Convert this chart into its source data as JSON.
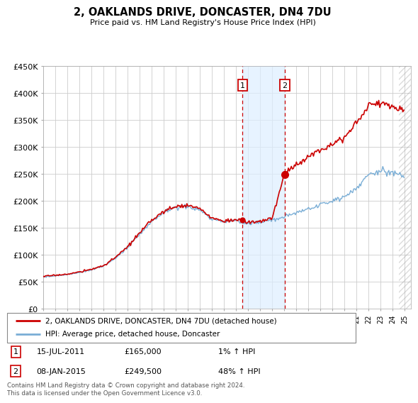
{
  "title": "2, OAKLANDS DRIVE, DONCASTER, DN4 7DU",
  "subtitle": "Price paid vs. HM Land Registry's House Price Index (HPI)",
  "ylabel_ticks": [
    "£0",
    "£50K",
    "£100K",
    "£150K",
    "£200K",
    "£250K",
    "£300K",
    "£350K",
    "£400K",
    "£450K"
  ],
  "ylim": [
    0,
    450000
  ],
  "xlim_start": 1995.0,
  "xlim_end": 2025.5,
  "sale1_date": "15-JUL-2011",
  "sale1_price": 165000,
  "sale1_label": "1",
  "sale1_year": 2011.54,
  "sale2_date": "08-JAN-2015",
  "sale2_price": 249500,
  "sale2_label": "2",
  "sale2_year": 2015.03,
  "legend_line1": "2, OAKLANDS DRIVE, DONCASTER, DN4 7DU (detached house)",
  "legend_line2": "HPI: Average price, detached house, Doncaster",
  "sale1_pct": "1% ↑ HPI",
  "sale2_pct": "48% ↑ HPI",
  "footnote": "Contains HM Land Registry data © Crown copyright and database right 2024.\nThis data is licensed under the Open Government Licence v3.0.",
  "red_color": "#cc0000",
  "blue_color": "#7aaed6",
  "bg_color": "#ffffff",
  "grid_color": "#cccccc",
  "shade_color": "#ddeeff",
  "marker_box_color": "#cc0000",
  "hatch_start": 2024.5
}
